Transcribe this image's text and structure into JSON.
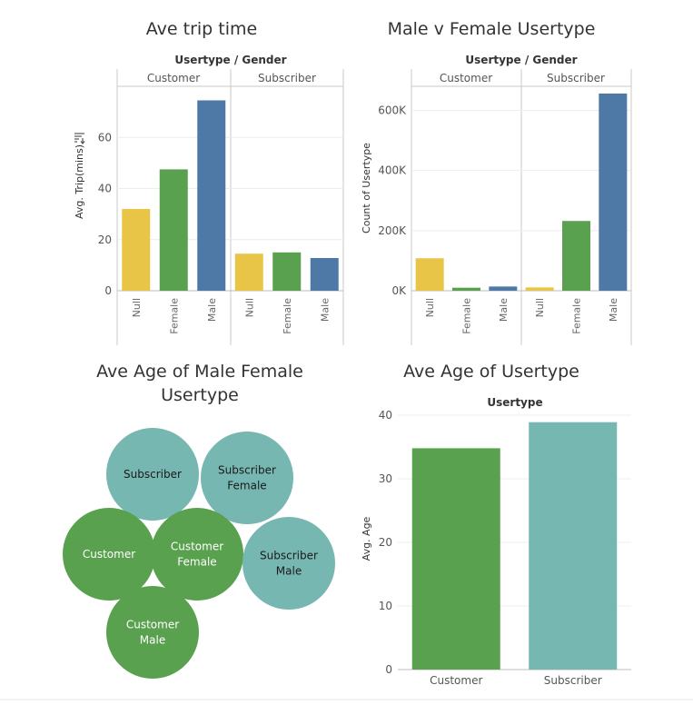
{
  "colors": {
    "Null": "#e8c547",
    "Female": "#59a14f",
    "Male": "#4e79a7",
    "Customer": "#59a14f",
    "Subscriber": "#76b7b2",
    "grid": "#ececec",
    "axis": "#bdbdbd",
    "panel": "#c8c8c8"
  },
  "chart_data": [
    {
      "id": "trip",
      "type": "bar",
      "title": "Ave trip time",
      "header": "Usertype / Gender",
      "ylabel": "Avg. Trip(mins)",
      "sort_icon": "sort-descending-icon",
      "groups": [
        "Customer",
        "Subscriber"
      ],
      "categories": [
        "Null",
        "Female",
        "Male"
      ],
      "series": [
        {
          "group": "Customer",
          "values": [
            32,
            47.5,
            74.5
          ]
        },
        {
          "group": "Subscriber",
          "values": [
            14.5,
            15,
            12.8
          ]
        }
      ],
      "ylim": [
        0,
        80
      ],
      "yticks": [
        0,
        20,
        40,
        60
      ],
      "yticklabels": [
        "0",
        "20",
        "40",
        "60"
      ],
      "grid": true
    },
    {
      "id": "count",
      "type": "bar",
      "title": "Male v Female Usertype",
      "header": "Usertype / Gender",
      "ylabel": "Count of Usertype",
      "groups": [
        "Customer",
        "Subscriber"
      ],
      "categories": [
        "Null",
        "Female",
        "Male"
      ],
      "series": [
        {
          "group": "Customer",
          "values": [
            108000,
            10000,
            14000
          ]
        },
        {
          "group": "Subscriber",
          "values": [
            11000,
            232000,
            656000
          ]
        }
      ],
      "ylim": [
        0,
        680000
      ],
      "yticks": [
        0,
        200000,
        400000,
        600000
      ],
      "yticklabels": [
        "0K",
        "200K",
        "400K",
        "600K"
      ],
      "grid": true
    },
    {
      "id": "bubbles",
      "type": "bubble",
      "title_lines": [
        "Ave Age of Male Female",
        "Usertype"
      ],
      "items": [
        {
          "label": [
            "Subscriber"
          ],
          "usertype": "Subscriber"
        },
        {
          "label": [
            "Subscriber",
            "Female"
          ],
          "usertype": "Subscriber"
        },
        {
          "label": [
            "Customer"
          ],
          "usertype": "Customer"
        },
        {
          "label": [
            "Customer",
            "Female"
          ],
          "usertype": "Customer"
        },
        {
          "label": [
            "Subscriber",
            "Male"
          ],
          "usertype": "Subscriber"
        },
        {
          "label": [
            "Customer",
            "Male"
          ],
          "usertype": "Customer"
        }
      ]
    },
    {
      "id": "age",
      "type": "bar",
      "title": "Ave Age of  Usertype",
      "header": "Usertype",
      "ylabel": "Avg. Age",
      "categories": [
        "Customer",
        "Subscriber"
      ],
      "values": [
        34.8,
        38.9
      ],
      "ylim": [
        0,
        40
      ],
      "yticks": [
        0,
        10,
        20,
        30,
        40
      ],
      "yticklabels": [
        "0",
        "10",
        "20",
        "30",
        "40"
      ],
      "grid": true
    }
  ]
}
